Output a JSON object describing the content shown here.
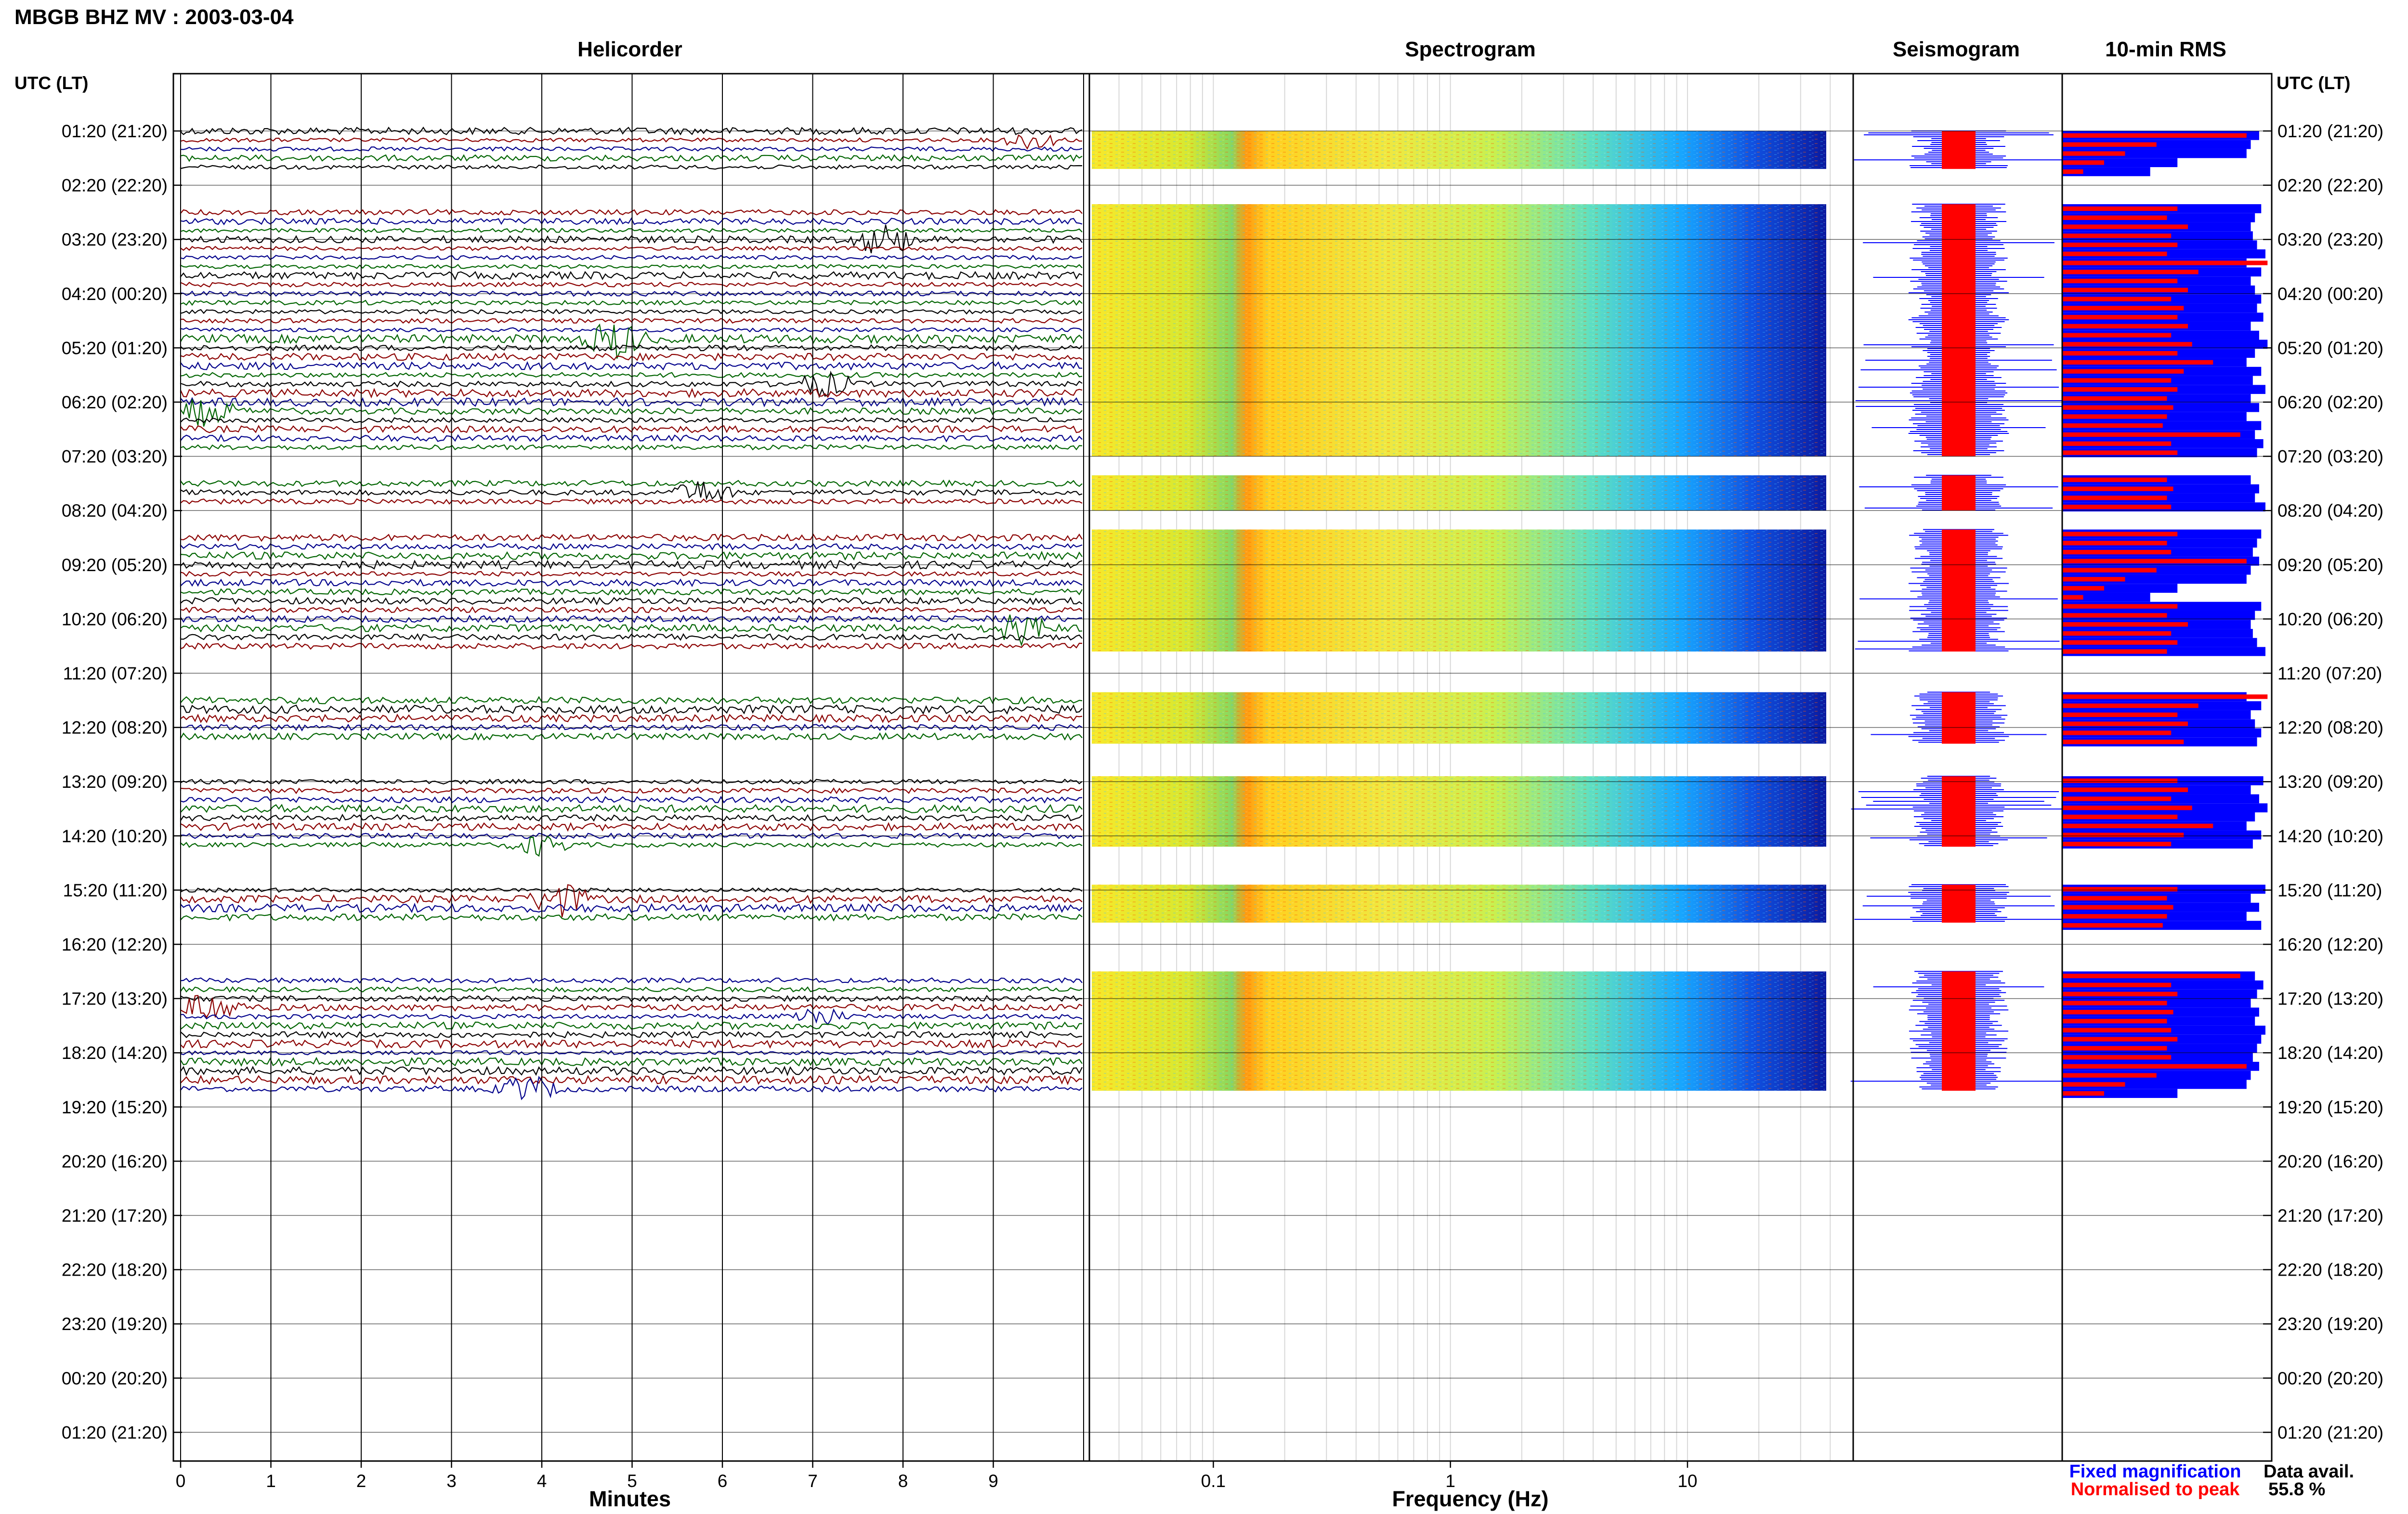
{
  "header": {
    "title": "MBGB BHZ MV : 2003-03-04"
  },
  "panels": {
    "helicorder": "Helicorder",
    "spectrogram": "Spectrogram",
    "seismogram": "Seismogram",
    "rms": "10-min RMS"
  },
  "row_header": "UTC (LT)",
  "hour_labels": [
    "01:20 (21:20)",
    "02:20 (22:20)",
    "03:20 (23:20)",
    "04:20 (00:20)",
    "05:20 (01:20)",
    "06:20 (02:20)",
    "07:20 (03:20)",
    "08:20 (04:20)",
    "09:20 (05:20)",
    "10:20 (06:20)",
    "11:20 (07:20)",
    "12:20 (08:20)",
    "13:20 (09:20)",
    "14:20 (10:20)",
    "15:20 (11:20)",
    "16:20 (12:20)",
    "17:20 (13:20)",
    "18:20 (14:20)",
    "19:20 (15:20)",
    "20:20 (16:20)",
    "21:20 (17:20)",
    "22:20 (18:20)",
    "23:20 (19:20)",
    "00:20 (20:20)",
    "01:20 (21:20)"
  ],
  "x_axes": {
    "minutes_label": "Minutes",
    "minutes_ticks": [
      "0",
      "1",
      "2",
      "3",
      "4",
      "5",
      "6",
      "7",
      "8",
      "9"
    ],
    "frequency_label": "Frequency (Hz)",
    "frequency_ticks": [
      "0.1",
      "1",
      "10"
    ]
  },
  "legend": {
    "fixed": "Fixed magnification",
    "normalised": "Normalised to peak",
    "avail_label": "Data avail.",
    "avail_value": "55.8 %"
  },
  "colors": {
    "trace_black": "#000000",
    "trace_red": "#8b0000",
    "trace_blue": "#00008b",
    "trace_green": "#006400",
    "rms_fixed": "#0000ff",
    "rms_normalised": "#ff0000"
  },
  "chart_data": {
    "type": "heatmap",
    "title": "MBGB BHZ MV : 2003-03-04",
    "hours_utc": [
      "01:20",
      "02:20",
      "03:20",
      "04:20",
      "05:20",
      "06:20",
      "07:20",
      "08:20",
      "09:20",
      "10:20",
      "11:20",
      "12:20",
      "13:20",
      "14:20",
      "15:20",
      "16:20",
      "17:20",
      "18:20",
      "19:20",
      "20:20",
      "21:20",
      "22:20",
      "23:20",
      "00:20",
      "01:20"
    ],
    "data_blocks_hours_from_start": [
      [
        0,
        0.7
      ],
      [
        1.35,
        6.0
      ],
      [
        6.35,
        7.0
      ],
      [
        7.35,
        9.6
      ],
      [
        10.35,
        11.3
      ],
      [
        11.9,
        13.2
      ],
      [
        13.9,
        14.6
      ],
      [
        15.5,
        17.7
      ]
    ],
    "helicorder": {
      "xlabel": "Minutes",
      "xlim": [
        0,
        10
      ],
      "lines_per_hour": 6,
      "color_cycle": [
        "black",
        "darkred",
        "darkblue",
        "darkgreen"
      ]
    },
    "spectrogram": {
      "xlabel": "Frequency (Hz)",
      "xscale": "log",
      "xlim": [
        0.03,
        50
      ],
      "colormap": "jet"
    },
    "rms_10min": {
      "series": [
        {
          "name": "Fixed magnification",
          "values": [
            0.94,
            0.9,
            0.88,
            0.55,
            0.42,
            0.95,
            0.92,
            0.9,
            0.91,
            0.93,
            0.97,
            0.88,
            0.95,
            0.9,
            0.92,
            0.95,
            0.93,
            0.96,
            0.9,
            0.94,
            0.98,
            0.92,
            0.88,
            0.95,
            0.91,
            0.97,
            0.9,
            0.94,
            0.88,
            0.95,
            0.92,
            0.96,
            0.93,
            0.9,
            0.94,
            0.92,
            0.97,
            0.95,
            0.93,
            0.91
          ]
        },
        {
          "name": "Normalised to peak",
          "values": [
            0.88,
            0.45,
            0.3,
            0.2,
            0.1,
            0.55,
            0.5,
            0.6,
            0.52,
            0.55,
            0.5,
            0.98,
            0.65,
            0.55,
            0.6,
            0.52,
            0.58,
            0.55,
            0.6,
            0.52,
            0.62,
            0.55,
            0.72,
            0.58,
            0.52,
            0.55,
            0.5,
            0.53,
            0.5,
            0.48,
            0.85,
            0.52,
            0.55,
            0.5,
            0.53,
            0.5,
            0.52,
            0.55,
            0.5,
            0.52
          ]
        }
      ]
    }
  }
}
